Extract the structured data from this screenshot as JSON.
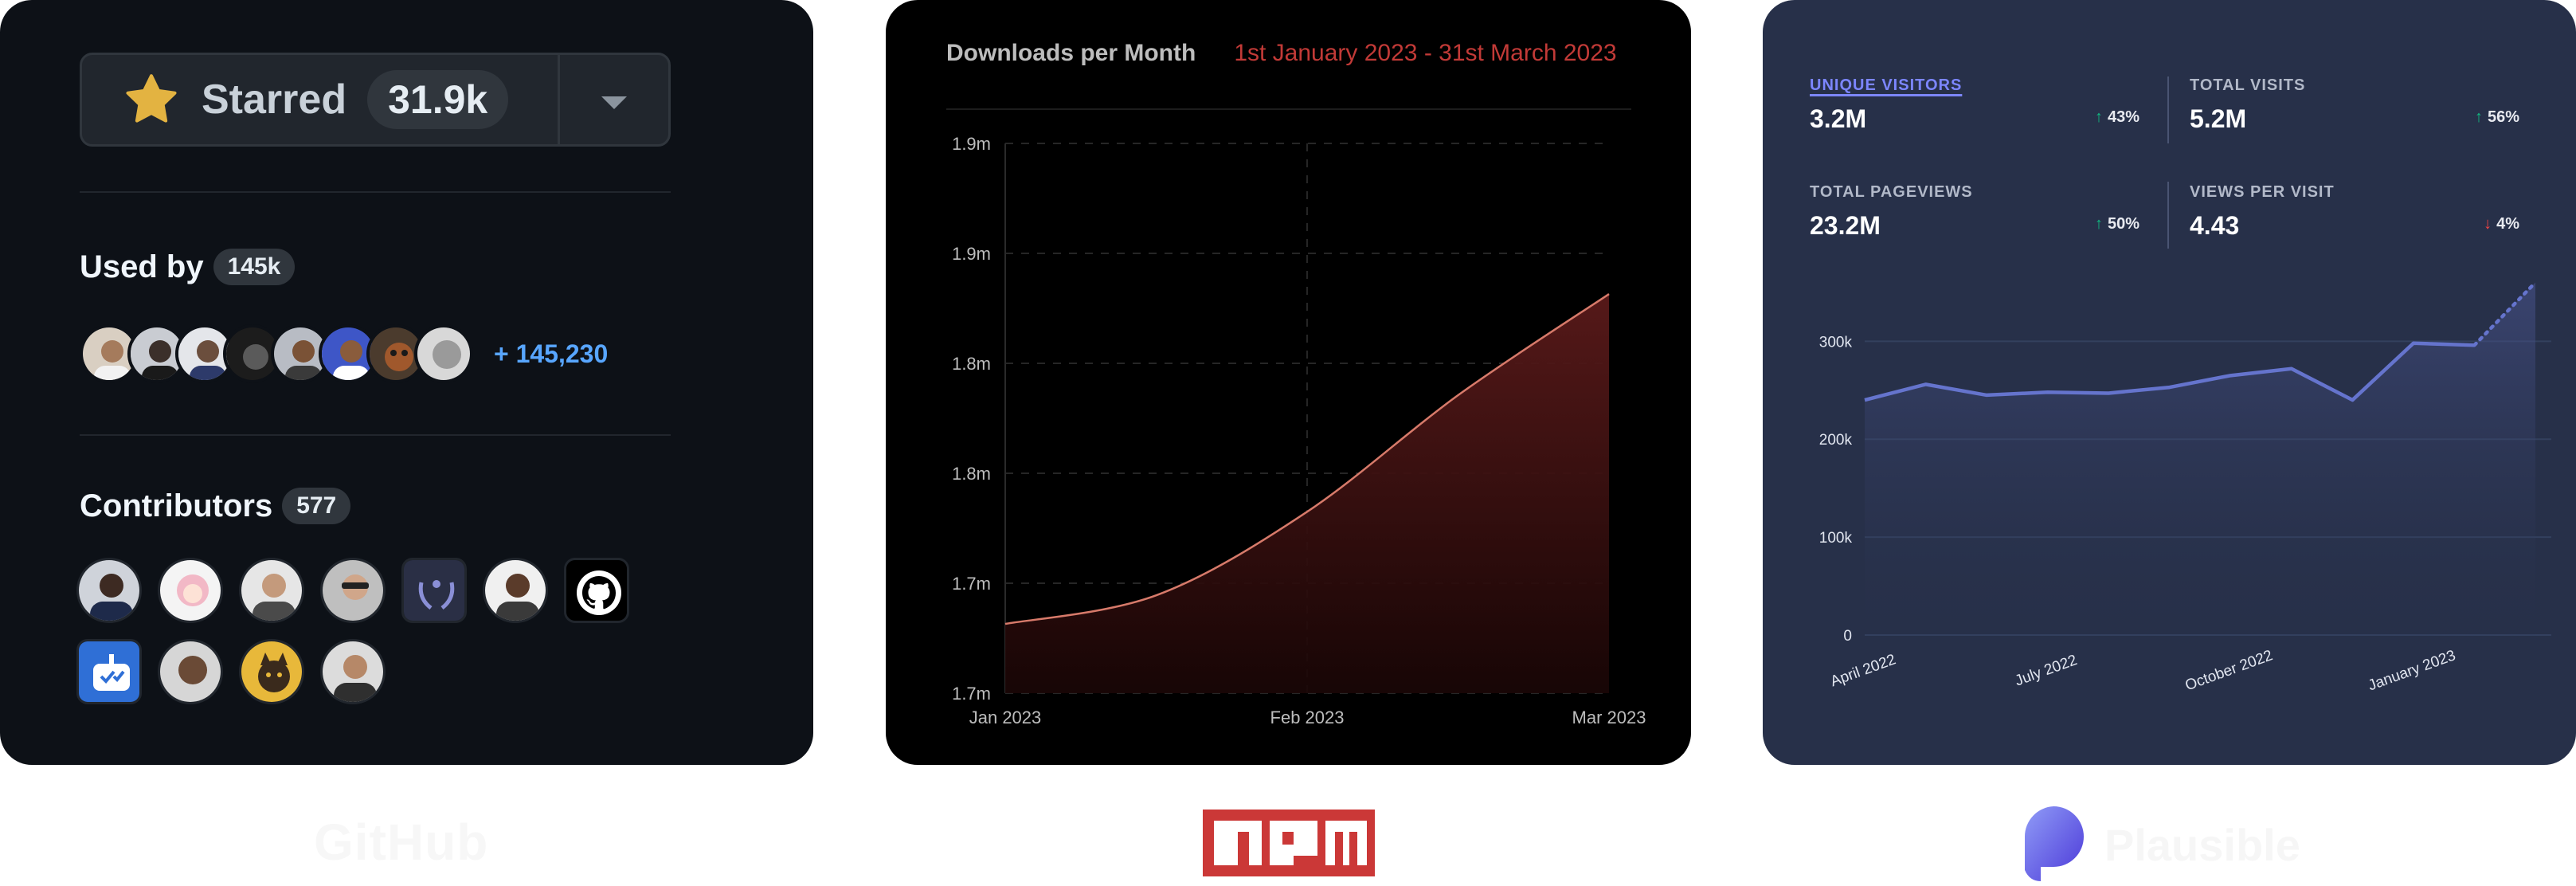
{
  "github": {
    "star_button": {
      "label": "Starred",
      "count": "31.9k"
    },
    "used_by": {
      "title": "Used by",
      "count": "145k",
      "more": "+ 145,230"
    },
    "contributors": {
      "title": "Contributors",
      "count": "577"
    },
    "logo_text": "GitHub"
  },
  "npm": {
    "title": "Downloads per Month",
    "date_range": "1st January 2023 - 31st March 2023",
    "logo_text": "npm",
    "colors": {
      "accent": "#c23a37",
      "logo": "#cb3837"
    },
    "chart_data": {
      "type": "area",
      "title": "Downloads per Month",
      "x_ticks": [
        "Jan 2023",
        "Feb 2023",
        "Mar 2023"
      ],
      "y_ticks": [
        "1.9m",
        "1.9m",
        "1.8m",
        "1.8m",
        "1.7m",
        "1.7m"
      ],
      "x": [
        0,
        0.25,
        0.5,
        0.75,
        1.0
      ],
      "y": [
        1.663,
        1.689,
        1.765,
        1.871,
        1.963
      ],
      "grid": true,
      "xlim": [
        0,
        1
      ],
      "ylim": [
        1.6,
        2.1
      ]
    }
  },
  "plausible": {
    "kpis": [
      {
        "label": "UNIQUE VISITORS",
        "value": "3.2M",
        "change": "43%",
        "direction": "up",
        "active": true
      },
      {
        "label": "TOTAL VISITS",
        "value": "5.2M",
        "change": "56%",
        "direction": "up",
        "active": false
      },
      {
        "label": "TOTAL PAGEVIEWS",
        "value": "23.2M",
        "change": "50%",
        "direction": "up",
        "active": false
      },
      {
        "label": "VIEWS PER VISIT",
        "value": "4.43",
        "change": "4%",
        "direction": "down",
        "active": false
      }
    ],
    "logo_text": "Plausible",
    "colors": {
      "line": "#6574cd",
      "up": "#10b981",
      "down": "#ef4444"
    },
    "chart_data": {
      "type": "line",
      "y_ticks": [
        "300k",
        "200k",
        "100k",
        "0"
      ],
      "x_ticks": [
        "April 2022",
        "July 2022",
        "October 2022",
        "January 2023"
      ],
      "x": [
        "Apr 2022",
        "May 2022",
        "Jun 2022",
        "Jul 2022",
        "Aug 2022",
        "Sep 2022",
        "Oct 2022",
        "Nov 2022",
        "Dec 2022",
        "Jan 2023",
        "Feb 2023",
        "Mar 2023"
      ],
      "values": [
        240000,
        256000,
        245000,
        248000,
        247000,
        253000,
        265000,
        272000,
        240000,
        298000,
        296000,
        360000
      ],
      "ylim": [
        0,
        380000
      ],
      "grid": true,
      "last_segment_dashed": true
    }
  }
}
